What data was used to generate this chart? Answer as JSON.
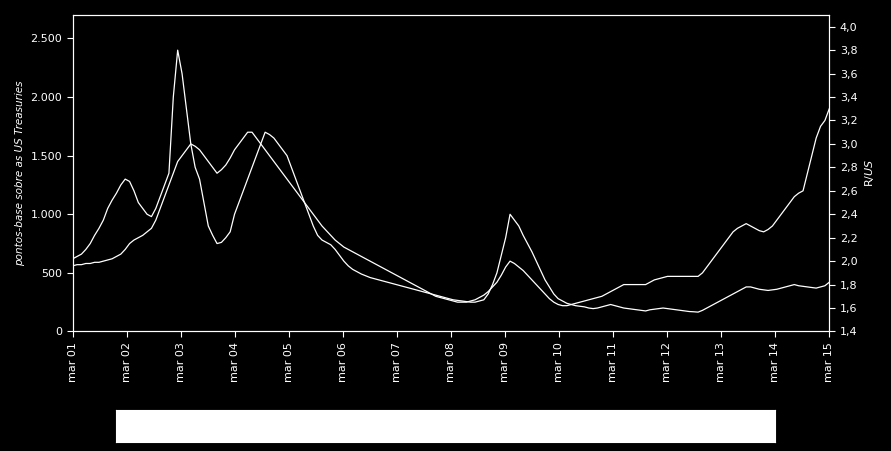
{
  "background_color": "#000000",
  "text_color": "#ffffff",
  "line_color": "#ffffff",
  "ylabel_left": "pontos-base sobre as US Treasuries",
  "ylabel_right": "R$/US$",
  "ylim_left": [
    0,
    2700
  ],
  "ylim_right": [
    1.4,
    4.1
  ],
  "yticks_left": [
    0,
    500,
    1000,
    1500,
    2000,
    2500
  ],
  "yticks_right": [
    1.4,
    1.6,
    1.8,
    2.0,
    2.2,
    2.4,
    2.6,
    2.8,
    3.0,
    3.2,
    3.4,
    3.6,
    3.8,
    4.0
  ],
  "xtick_labels": [
    "mar 01",
    "mar 02",
    "mar 03",
    "mar 04",
    "mar 05",
    "mar 06",
    "mar 07",
    "mar 08",
    "mar 09",
    "mar 10",
    "mar 11",
    "mar 12",
    "mar 13",
    "mar 14",
    "mar 15"
  ],
  "cds_data": [
    620,
    640,
    660,
    700,
    750,
    820,
    880,
    950,
    1050,
    1120,
    1180,
    1250,
    1300,
    1280,
    1200,
    1100,
    1050,
    1000,
    980,
    1050,
    1150,
    1250,
    1350,
    2000,
    2400,
    2200,
    1900,
    1600,
    1400,
    1300,
    1100,
    900,
    820,
    750,
    760,
    800,
    850,
    1000,
    1100,
    1200,
    1300,
    1400,
    1500,
    1600,
    1700,
    1680,
    1650,
    1600,
    1550,
    1500,
    1400,
    1300,
    1200,
    1100,
    1000,
    900,
    820,
    780,
    760,
    740,
    700,
    650,
    600,
    560,
    530,
    510,
    490,
    475,
    460,
    450,
    440,
    430,
    420,
    410,
    400,
    390,
    380,
    370,
    360,
    350,
    340,
    330,
    320,
    310,
    300,
    290,
    280,
    270,
    265,
    260,
    255,
    250,
    250,
    260,
    270,
    320,
    400,
    500,
    650,
    800,
    1000,
    950,
    900,
    820,
    750,
    680,
    600,
    520,
    440,
    380,
    320,
    280,
    260,
    240,
    230,
    220,
    215,
    210,
    200,
    195,
    200,
    210,
    220,
    230,
    220,
    210,
    200,
    195,
    190,
    185,
    180,
    175,
    185,
    190,
    195,
    200,
    195,
    190,
    185,
    180,
    175,
    170,
    168,
    165,
    180,
    200,
    220,
    240,
    260,
    280,
    300,
    320,
    340,
    360,
    380,
    380,
    370,
    360,
    355,
    350,
    355,
    360,
    370,
    380,
    390,
    400,
    390,
    385,
    380,
    375,
    370,
    380,
    390,
    420
  ],
  "fx_data": [
    1.96,
    1.97,
    1.97,
    1.98,
    1.98,
    1.99,
    1.99,
    2.0,
    2.01,
    2.02,
    2.04,
    2.06,
    2.1,
    2.15,
    2.18,
    2.2,
    2.22,
    2.25,
    2.28,
    2.35,
    2.45,
    2.55,
    2.65,
    2.75,
    2.85,
    2.9,
    2.95,
    3.0,
    2.98,
    2.95,
    2.9,
    2.85,
    2.8,
    2.75,
    2.78,
    2.82,
    2.88,
    2.95,
    3.0,
    3.05,
    3.1,
    3.1,
    3.05,
    3.0,
    2.95,
    2.9,
    2.85,
    2.8,
    2.75,
    2.7,
    2.65,
    2.6,
    2.55,
    2.5,
    2.45,
    2.4,
    2.35,
    2.3,
    2.26,
    2.22,
    2.18,
    2.15,
    2.12,
    2.1,
    2.08,
    2.06,
    2.04,
    2.02,
    2.0,
    1.98,
    1.96,
    1.94,
    1.92,
    1.9,
    1.88,
    1.86,
    1.84,
    1.82,
    1.8,
    1.78,
    1.76,
    1.74,
    1.72,
    1.7,
    1.69,
    1.68,
    1.67,
    1.66,
    1.65,
    1.65,
    1.65,
    1.66,
    1.67,
    1.69,
    1.71,
    1.74,
    1.78,
    1.82,
    1.88,
    1.95,
    2.0,
    1.98,
    1.95,
    1.92,
    1.88,
    1.84,
    1.8,
    1.76,
    1.72,
    1.68,
    1.65,
    1.63,
    1.62,
    1.62,
    1.63,
    1.64,
    1.65,
    1.66,
    1.67,
    1.68,
    1.69,
    1.7,
    1.72,
    1.74,
    1.76,
    1.78,
    1.8,
    1.8,
    1.8,
    1.8,
    1.8,
    1.8,
    1.82,
    1.84,
    1.85,
    1.86,
    1.87,
    1.87,
    1.87,
    1.87,
    1.87,
    1.87,
    1.87,
    1.87,
    1.9,
    1.95,
    2.0,
    2.05,
    2.1,
    2.15,
    2.2,
    2.25,
    2.28,
    2.3,
    2.32,
    2.3,
    2.28,
    2.26,
    2.25,
    2.27,
    2.3,
    2.35,
    2.4,
    2.45,
    2.5,
    2.55,
    2.58,
    2.6,
    2.75,
    2.9,
    3.05,
    3.15,
    3.2,
    3.3
  ]
}
